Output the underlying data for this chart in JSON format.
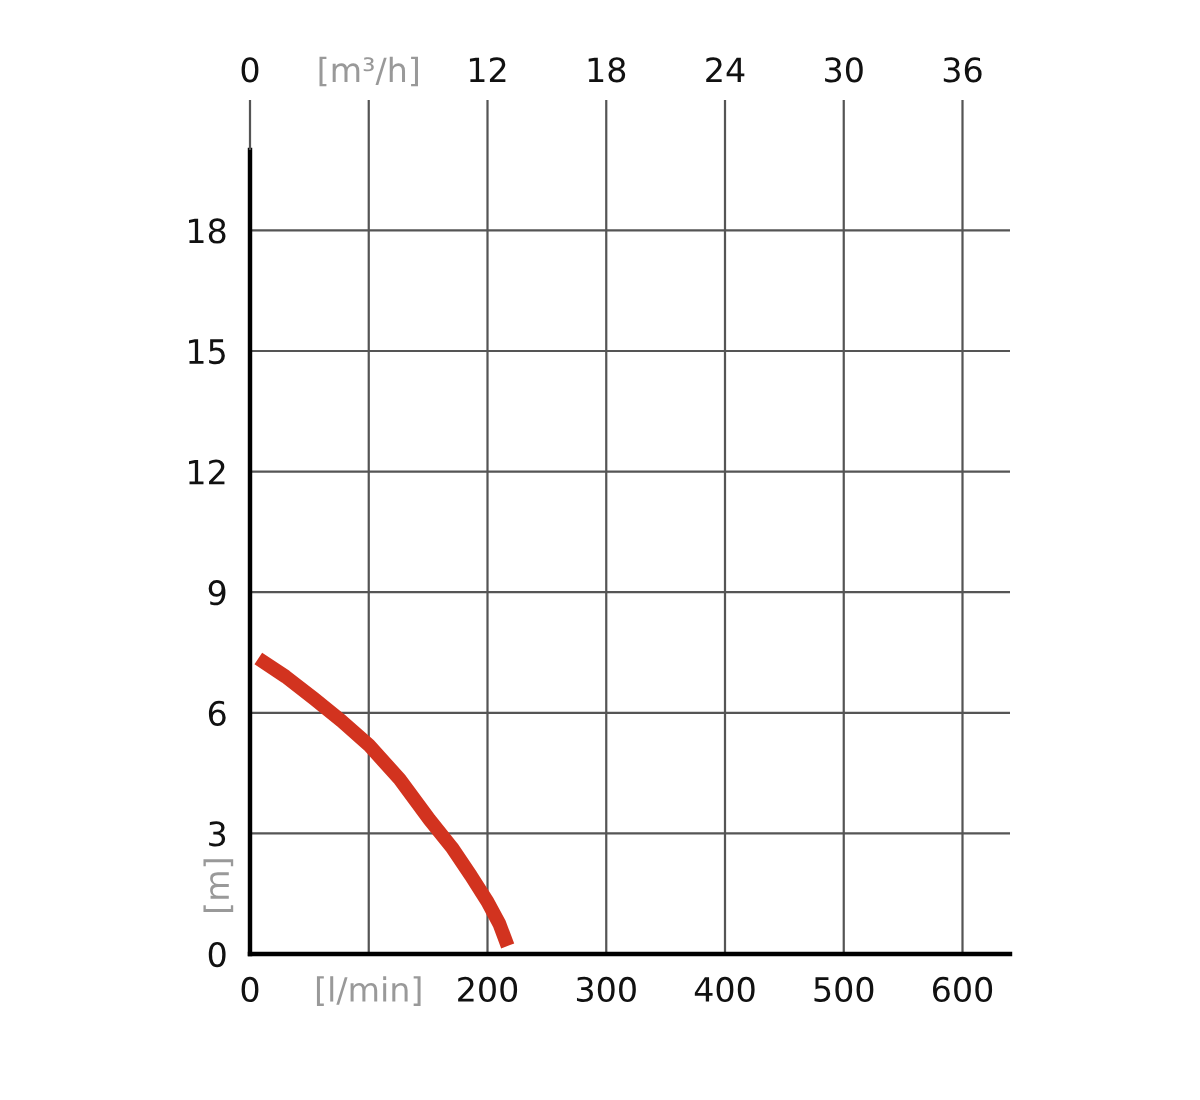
{
  "chart_data": {
    "type": "line",
    "ylabel": "[m]",
    "x": [
      7,
      30,
      54,
      77,
      100,
      126,
      151,
      170,
      186,
      200,
      210,
      217
    ],
    "series": [
      {
        "color": "#d2331f",
        "values": [
          7.35,
          6.9,
          6.35,
          5.8,
          5.2,
          4.35,
          3.35,
          2.65,
          1.95,
          1.3,
          0.75,
          0.2
        ]
      }
    ],
    "xlim": [
      0,
      640
    ],
    "xticks": [
      0,
      {
        "value": 100,
        "label": "[l/min]"
      },
      200,
      300,
      400,
      500,
      600
    ],
    "x2lim": [
      0,
      38.4
    ],
    "x2ticks": [
      0,
      {
        "value": 6,
        "label": "[m³/h]"
      },
      12,
      18,
      24,
      30,
      36
    ],
    "ylim": [
      0,
      20
    ],
    "yticks": [
      0,
      3,
      6,
      9,
      12,
      15,
      18
    ],
    "grid": true,
    "marker": "none",
    "line_style": "solid"
  }
}
